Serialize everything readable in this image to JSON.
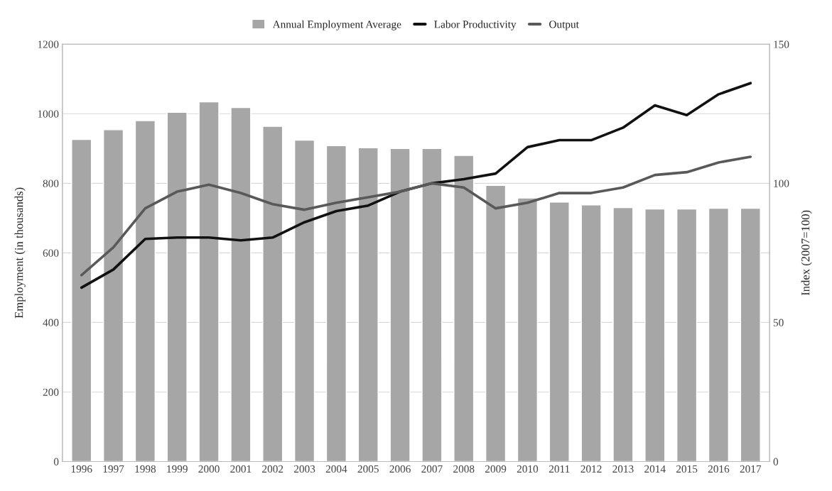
{
  "chart_data": {
    "type": "bar",
    "categories": [
      "1996",
      "1997",
      "1998",
      "1999",
      "2000",
      "2001",
      "2002",
      "2003",
      "2004",
      "2005",
      "2006",
      "2007",
      "2008",
      "2009",
      "2010",
      "2011",
      "2012",
      "2013",
      "2014",
      "2015",
      "2016",
      "2017"
    ],
    "series": [
      {
        "name": "Annual Employment Average",
        "color": "#a6a6a6",
        "values": [
          926,
          954,
          980,
          1004,
          1034,
          1018,
          964,
          924,
          908,
          902,
          900,
          900,
          880,
          794,
          758,
          746,
          738,
          730,
          726,
          726,
          728,
          728
        ]
      },
      {
        "name": "Labor Productivity",
        "type": "line",
        "axis": "y2",
        "color": "#111111",
        "values": [
          62.5,
          69,
          80,
          80.5,
          80.5,
          79.5,
          80.5,
          86,
          90,
          92,
          97,
          100,
          101.5,
          103.5,
          113,
          115.5,
          115.5,
          120,
          128,
          124.5,
          132,
          136
        ]
      },
      {
        "name": "Output",
        "type": "line",
        "axis": "y2",
        "color": "#595959",
        "values": [
          67,
          77,
          91,
          97,
          99.5,
          96.5,
          92.5,
          90.5,
          93,
          95,
          97,
          100,
          98.5,
          91,
          93,
          96.5,
          96.5,
          98.5,
          103,
          104,
          107.5,
          109.5
        ]
      }
    ],
    "ylabel": "Employment (in thousands)",
    "y2label": "Index (2007=100)",
    "ylim": [
      0,
      1200
    ],
    "yticks": [
      0,
      200,
      400,
      600,
      800,
      1000,
      1200
    ],
    "y2lim": [
      0,
      150
    ],
    "y2ticks": [
      0,
      50,
      100,
      150
    ],
    "grid": "y",
    "legend": "top",
    "marker": "none",
    "line_style": "solid"
  }
}
